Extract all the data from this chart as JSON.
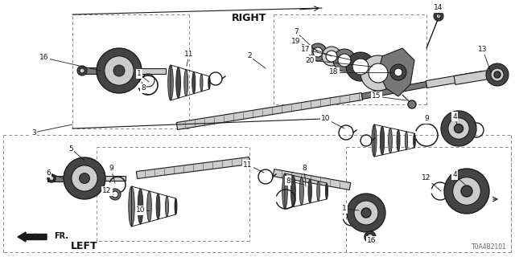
{
  "bg_color": "#ffffff",
  "line_color": "#1a1a1a",
  "dash_color": "#888888",
  "text_color": "#111111",
  "gray_fill": "#888888",
  "light_gray": "#cccccc",
  "dark_gray": "#444444",
  "mid_gray": "#777777",
  "diagram_id": "T0A4B2101",
  "right_label": "RIGHT",
  "left_label": "LEFT",
  "fr_label": "FR.",
  "figw": 6.4,
  "figh": 3.2,
  "dpi": 100
}
